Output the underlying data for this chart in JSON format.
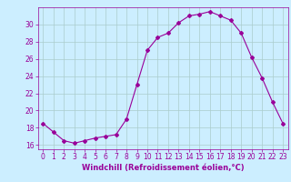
{
  "x": [
    0,
    1,
    2,
    3,
    4,
    5,
    6,
    7,
    8,
    9,
    10,
    11,
    12,
    13,
    14,
    15,
    16,
    17,
    18,
    19,
    20,
    21,
    22,
    23
  ],
  "y": [
    18.5,
    17.5,
    16.5,
    16.2,
    16.5,
    16.8,
    17.0,
    17.2,
    19.0,
    23.0,
    27.0,
    28.5,
    29.0,
    30.2,
    31.0,
    31.2,
    31.5,
    31.0,
    30.5,
    29.0,
    26.2,
    23.8,
    21.0,
    18.5
  ],
  "line_color": "#990099",
  "marker": "D",
  "marker_size": 2,
  "background_color": "#cceeff",
  "grid_color": "#aacccc",
  "xlabel": "Windchill (Refroidissement éolien,°C)",
  "ylabel": "",
  "title": "",
  "xlim": [
    -0.5,
    23.5
  ],
  "ylim": [
    15.5,
    32.0
  ],
  "yticks": [
    16,
    18,
    20,
    22,
    24,
    26,
    28,
    30
  ],
  "xticks": [
    0,
    1,
    2,
    3,
    4,
    5,
    6,
    7,
    8,
    9,
    10,
    11,
    12,
    13,
    14,
    15,
    16,
    17,
    18,
    19,
    20,
    21,
    22,
    23
  ],
  "xlabel_color": "#990099",
  "tick_color": "#990099",
  "font_size": 5.5,
  "xlabel_fontsize": 6.0
}
